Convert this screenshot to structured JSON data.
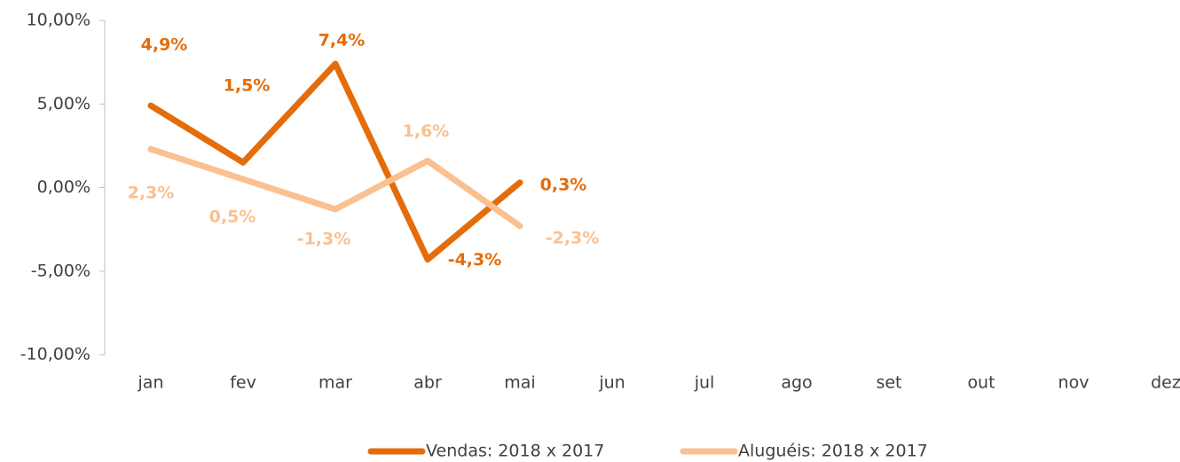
{
  "chart_data": {
    "type": "line",
    "categories": [
      "jan",
      "fev",
      "mar",
      "abr",
      "mai",
      "jun",
      "jul",
      "ago",
      "set",
      "out",
      "nov",
      "dez"
    ],
    "series": [
      {
        "name": "Vendas: 2018 x 2017",
        "color": "#e46c0a",
        "values": [
          4.9,
          1.5,
          7.4,
          -4.3,
          0.3,
          null,
          null,
          null,
          null,
          null,
          null,
          null
        ],
        "value_labels": [
          "4,9%",
          "1,5%",
          "7,4%",
          "-4,3%",
          "0,3%",
          null,
          null,
          null,
          null,
          null,
          null,
          null
        ]
      },
      {
        "name": "Aluguéis: 2018 x 2017",
        "color": "#fac090",
        "values": [
          2.3,
          0.5,
          -1.3,
          1.6,
          -2.3,
          null,
          null,
          null,
          null,
          null,
          null,
          null
        ],
        "value_labels": [
          "2,3%",
          "0,5%",
          "-1,3%",
          "1,6%",
          "-2,3%",
          null,
          null,
          null,
          null,
          null,
          null,
          null
        ]
      }
    ],
    "ylim": [
      -10,
      10
    ],
    "yticks": [
      {
        "value": -10,
        "label": "-10,00%"
      },
      {
        "value": -5,
        "label": "-5,00%"
      },
      {
        "value": 0,
        "label": "0,00%"
      },
      {
        "value": 5,
        "label": "5,00%"
      },
      {
        "value": 10,
        "label": "10,00%"
      }
    ],
    "grid": false,
    "legend": "bottom"
  }
}
